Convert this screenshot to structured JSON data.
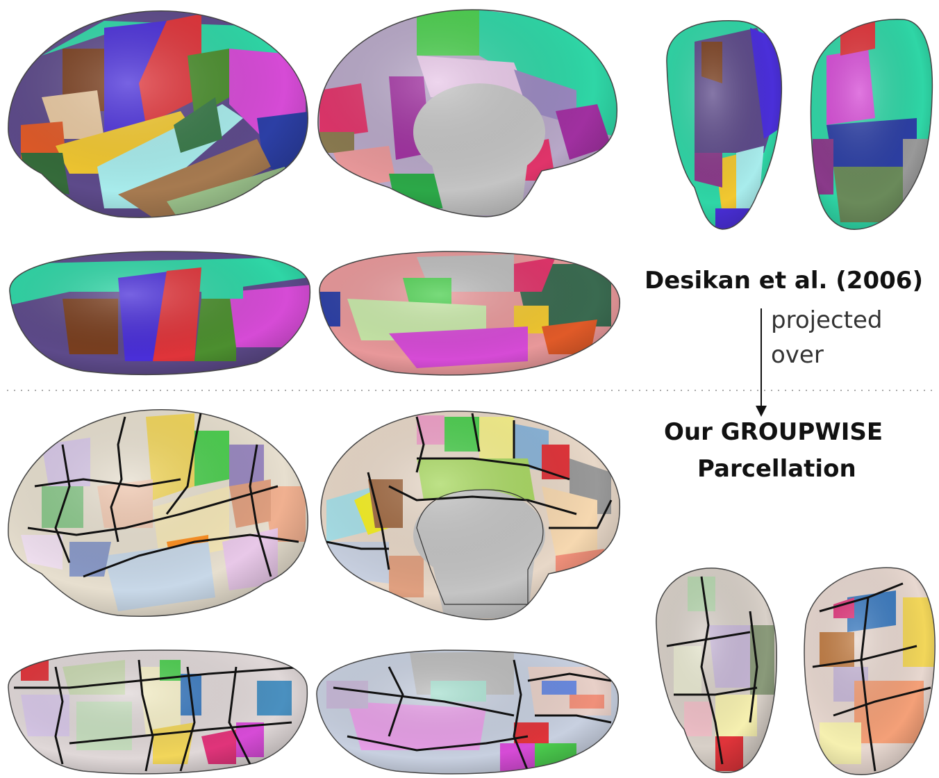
{
  "labels": {
    "source": "Desikan et al. (2006)",
    "arrow_line1": "projected",
    "arrow_line2": "over",
    "target_line1": "Our GROUPWISE",
    "target_line2": "Parcellation"
  },
  "colors": {
    "teal": "#2fd6a6",
    "blue": "#4a2fd9",
    "red": "#e0343a",
    "brown": "#7a3f1f",
    "green": "#4ccf4f",
    "magenta": "#d64bd6",
    "navy": "#2c3fa5",
    "gray": "#bdbdbd",
    "boundary": "#111111",
    "pastel_base": "#e7dfcf"
  },
  "panels": [
    "desikan-lateral",
    "desikan-medial",
    "desikan-front-back",
    "desikan-dorsal",
    "desikan-ventral",
    "groupwise-lateral",
    "groupwise-medial",
    "groupwise-front-back",
    "groupwise-dorsal",
    "groupwise-ventral"
  ]
}
